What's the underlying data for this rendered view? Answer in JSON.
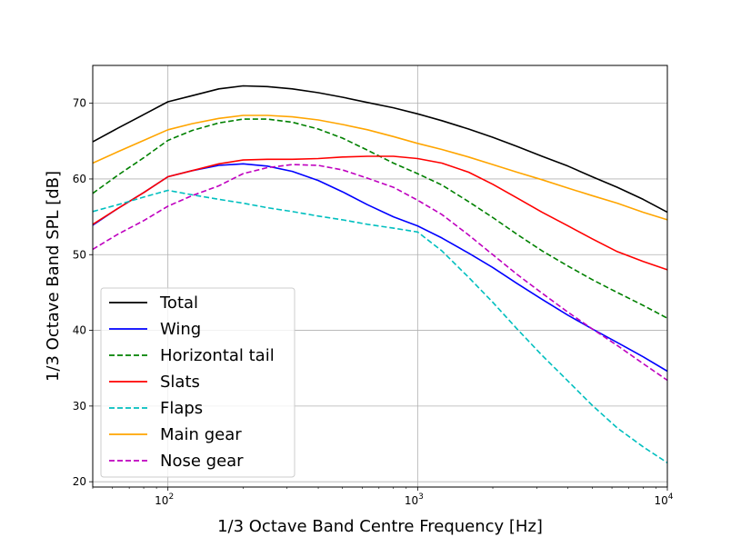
{
  "chart_data": {
    "type": "line",
    "xlabel": "1/3 Octave Band Centre Frequency [Hz]",
    "ylabel": "1/3 Octave Band SPL [dB]",
    "xscale": "log",
    "xlim": [
      50,
      10000
    ],
    "ylim": [
      19.3,
      75
    ],
    "grid": true,
    "legend_position": "lower-left",
    "x_ticks": [
      {
        "value": 100,
        "base": "10",
        "exp": "2"
      },
      {
        "value": 1000,
        "base": "10",
        "exp": "3"
      },
      {
        "value": 10000,
        "base": "10",
        "exp": "4"
      }
    ],
    "y_ticks": [
      20,
      30,
      40,
      50,
      60,
      70
    ],
    "x": [
      50,
      63,
      80,
      100,
      125,
      160,
      200,
      250,
      315,
      400,
      500,
      630,
      800,
      1000,
      1250,
      1600,
      2000,
      2500,
      3150,
      4000,
      5000,
      6300,
      8000,
      10000
    ],
    "series": [
      {
        "name": "Total",
        "color": "#000000",
        "dash": "solid",
        "values": [
          64.9,
          66.7,
          68.5,
          70.2,
          71.0,
          71.9,
          72.3,
          72.2,
          71.9,
          71.4,
          70.8,
          70.1,
          69.4,
          68.6,
          67.7,
          66.6,
          65.5,
          64.3,
          63.0,
          61.7,
          60.3,
          58.9,
          57.3,
          55.6
        ]
      },
      {
        "name": "Wing",
        "color": "#0000ff",
        "dash": "solid",
        "values": [
          53.9,
          56.1,
          58.2,
          60.3,
          61.1,
          61.8,
          62.0,
          61.7,
          61.0,
          59.8,
          58.3,
          56.6,
          55.0,
          53.8,
          52.2,
          50.2,
          48.3,
          46.2,
          44.1,
          42.0,
          40.2,
          38.4,
          36.5,
          34.6
        ]
      },
      {
        "name": "Horizontal tail",
        "color": "#008000",
        "dash": "dashed",
        "values": [
          58.1,
          60.5,
          62.8,
          65.1,
          66.4,
          67.4,
          67.9,
          67.9,
          67.5,
          66.6,
          65.4,
          63.8,
          62.1,
          60.7,
          59.2,
          57.0,
          54.9,
          52.7,
          50.5,
          48.5,
          46.7,
          45.0,
          43.3,
          41.6
        ]
      },
      {
        "name": "Slats",
        "color": "#ff0000",
        "dash": "solid",
        "values": [
          54.0,
          56.1,
          58.2,
          60.3,
          61.1,
          62.0,
          62.5,
          62.6,
          62.6,
          62.7,
          62.9,
          63.0,
          63.0,
          62.7,
          62.1,
          60.9,
          59.3,
          57.5,
          55.6,
          53.8,
          52.1,
          50.4,
          49.1,
          48.0
        ]
      },
      {
        "name": "Flaps",
        "color": "#00bfbf",
        "dash": "dashed",
        "values": [
          55.7,
          56.6,
          57.6,
          58.5,
          57.9,
          57.3,
          56.8,
          56.2,
          55.7,
          55.1,
          54.6,
          54.0,
          53.5,
          53.0,
          50.5,
          47.0,
          43.7,
          40.2,
          36.7,
          33.3,
          30.1,
          27.1,
          24.6,
          22.5
        ]
      },
      {
        "name": "Main gear",
        "color": "#ffa500",
        "dash": "solid",
        "values": [
          62.1,
          63.6,
          65.1,
          66.5,
          67.3,
          68.0,
          68.4,
          68.4,
          68.2,
          67.8,
          67.2,
          66.5,
          65.6,
          64.7,
          63.9,
          62.9,
          61.9,
          60.9,
          59.9,
          58.8,
          57.8,
          56.8,
          55.6,
          54.6
        ]
      },
      {
        "name": "Nose gear",
        "color": "#bf00bf",
        "dash": "dashed",
        "values": [
          50.7,
          52.7,
          54.5,
          56.4,
          57.8,
          59.1,
          60.7,
          61.5,
          61.9,
          61.8,
          61.2,
          60.1,
          58.9,
          57.2,
          55.3,
          52.6,
          50.0,
          47.4,
          44.9,
          42.4,
          40.2,
          38.0,
          35.6,
          33.4
        ]
      }
    ]
  }
}
